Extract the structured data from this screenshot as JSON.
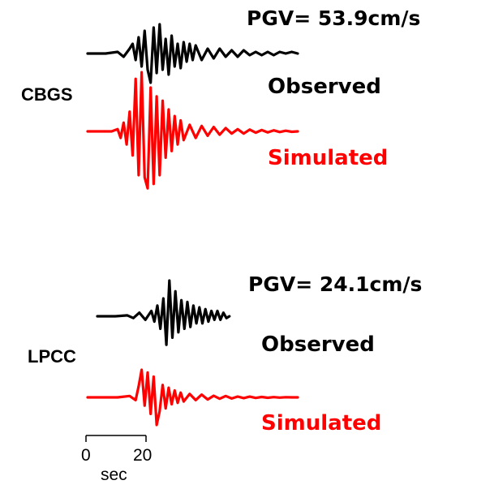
{
  "chart_data": [
    {
      "type": "line",
      "station": "CBGS",
      "pgv_label": "PGV=  53.9cm/s",
      "colors": {
        "observed": "#000000",
        "simulated": "#ff0000"
      },
      "series": [
        {
          "name": "Observed",
          "color": "#000000",
          "x": [
            0,
            6,
            10,
            12,
            14,
            15,
            16,
            17,
            18,
            19,
            20,
            21,
            22,
            23,
            24,
            25,
            26,
            27,
            28,
            29,
            30,
            31,
            32,
            33,
            34,
            35,
            36,
            38,
            40,
            42,
            44,
            46,
            48,
            50,
            52,
            54,
            56,
            58,
            60,
            62,
            64,
            66,
            68,
            70
          ],
          "y": [
            0,
            0,
            0.1,
            -0.2,
            0.3,
            0.6,
            -0.4,
            1.0,
            -0.8,
            1.4,
            -1.0,
            -1.8,
            1.6,
            -1.2,
            1.8,
            -1.0,
            0.9,
            -1.3,
            1.1,
            -0.8,
            0.6,
            -0.9,
            0.7,
            -0.5,
            0.6,
            -0.4,
            0.5,
            -0.4,
            0.3,
            -0.3,
            0.3,
            -0.2,
            0.2,
            -0.2,
            0.2,
            -0.1,
            0.1,
            -0.1,
            0.1,
            -0.1,
            0.1,
            0,
            0.1,
            0
          ]
        },
        {
          "name": "Simulated",
          "color": "#ff0000",
          "x": [
            0,
            8,
            10,
            11,
            12,
            13,
            14,
            15,
            16,
            17,
            18,
            19,
            20,
            21,
            22,
            23,
            24,
            25,
            26,
            27,
            28,
            29,
            30,
            31,
            32,
            34,
            36,
            38,
            40,
            42,
            44,
            46,
            48,
            50,
            52,
            54,
            56,
            58,
            60,
            62,
            64,
            66,
            68,
            70
          ],
          "y": [
            0,
            0,
            0.1,
            -0.3,
            0.4,
            -0.6,
            0.9,
            -1.1,
            2.4,
            -2.0,
            2.7,
            -2.1,
            -2.6,
            2.0,
            -2.4,
            1.6,
            -2.0,
            1.4,
            -1.2,
            1.0,
            -0.9,
            0.7,
            -0.6,
            0.5,
            -0.4,
            0.3,
            -0.3,
            0.25,
            -0.2,
            0.2,
            -0.15,
            0.15,
            -0.1,
            0.1,
            -0.1,
            0.08,
            -0.06,
            0.06,
            -0.05,
            0.05,
            -0.03,
            0.03,
            -0.02,
            0
          ]
        }
      ],
      "labels": {
        "observed": "Observed",
        "simulated": "Simulated"
      }
    },
    {
      "type": "line",
      "station": "LPCC",
      "pgv_label": "PGV= 24.1cm/s",
      "colors": {
        "observed": "#000000",
        "simulated": "#ff0000"
      },
      "series": [
        {
          "name": "Observed",
          "color": "#000000",
          "x": [
            0,
            6,
            10,
            12,
            14,
            16,
            18,
            19,
            20,
            21,
            22,
            23,
            24,
            25,
            26,
            27,
            28,
            29,
            30,
            31,
            32,
            33,
            34,
            35,
            36,
            37,
            38,
            39,
            40,
            41,
            42,
            43,
            44
          ],
          "y": [
            0,
            0,
            0.05,
            -0.1,
            0.2,
            -0.2,
            0.3,
            -0.3,
            0.6,
            -0.7,
            1.0,
            -1.6,
            2.0,
            -1.2,
            1.4,
            -0.9,
            0.9,
            -0.7,
            0.8,
            -0.6,
            0.6,
            -0.4,
            0.5,
            -0.4,
            0.4,
            -0.3,
            0.3,
            -0.2,
            0.3,
            -0.2,
            0.2,
            -0.1,
            0
          ]
        },
        {
          "name": "Simulated",
          "color": "#ff0000",
          "x": [
            0,
            10,
            14,
            16,
            17,
            18,
            19,
            20,
            21,
            22,
            23,
            24,
            25,
            26,
            27,
            28,
            29,
            30,
            31,
            32,
            34,
            36,
            38,
            40,
            42,
            44,
            46,
            48,
            50,
            52,
            54,
            56,
            58,
            60,
            62,
            64,
            66,
            68,
            70
          ],
          "y": [
            0,
            0,
            0.1,
            -0.2,
            0.8,
            2.0,
            -0.6,
            1.8,
            -1.2,
            1.5,
            -2.0,
            -1.0,
            0.9,
            -0.8,
            0.7,
            -0.5,
            0.5,
            -0.4,
            0.35,
            -0.3,
            0.25,
            -0.2,
            0.2,
            -0.15,
            0.12,
            -0.1,
            0.1,
            -0.08,
            0.06,
            -0.05,
            0.05,
            -0.04,
            0.03,
            -0.03,
            0.02,
            -0.02,
            0.01,
            0,
            0
          ]
        }
      ],
      "labels": {
        "observed": "Observed",
        "simulated": "Simulated"
      }
    }
  ],
  "scale_bar": {
    "start_label": "0",
    "end_label": "20",
    "unit": "sec",
    "start_value": 0,
    "end_value": 20
  }
}
